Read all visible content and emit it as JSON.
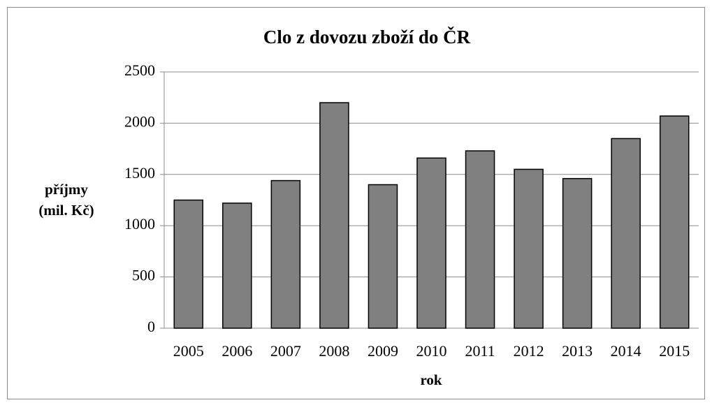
{
  "chart_data": {
    "type": "bar",
    "title": "Clo z dovozu zboží do ČR",
    "y_label": [
      "příjmy",
      "(mil. Kč)"
    ],
    "x_label": "rok",
    "categories": [
      "2005",
      "2006",
      "2007",
      "2008",
      "2009",
      "2010",
      "2011",
      "2012",
      "2013",
      "2014",
      "2015"
    ],
    "values": [
      1250,
      1220,
      1440,
      2200,
      1400,
      1660,
      1730,
      1550,
      1460,
      1850,
      2070
    ],
    "color": "#808080",
    "ylim": [
      0,
      2500
    ],
    "yticks": [
      0,
      500,
      1000,
      1500,
      2000,
      2500
    ],
    "grid": true
  }
}
